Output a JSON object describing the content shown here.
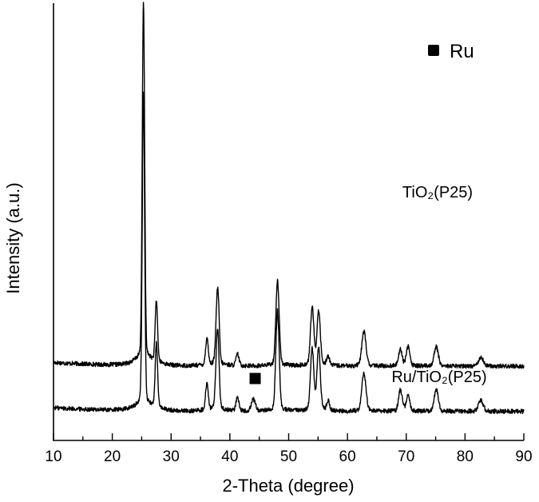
{
  "chart_data": {
    "type": "line",
    "xlabel": "2-Theta (degree)",
    "ylabel": "Intensity (a.u.)",
    "xlim": [
      10,
      90
    ],
    "x_ticks": [
      10,
      20,
      30,
      40,
      50,
      60,
      70,
      80,
      90
    ],
    "y_ticks_labeled": false,
    "grid": false,
    "legend": {
      "placement": "top-right",
      "entries": [
        {
          "marker": "filled-square",
          "label": "Ru",
          "color": "#000000"
        }
      ]
    },
    "series": [
      {
        "name": "TiO₂(P25)",
        "color": "#000000",
        "baseline": 0.52,
        "peaks": [
          {
            "x": 25.3,
            "h": 4.7,
            "w": 0.2
          },
          {
            "x": 27.5,
            "h": 0.8,
            "w": 0.2
          },
          {
            "x": 36.1,
            "h": 0.35,
            "w": 0.22
          },
          {
            "x": 37.8,
            "h": 0.5,
            "w": 0.25
          },
          {
            "x": 38.0,
            "h": 0.6,
            "w": 0.22
          },
          {
            "x": 41.3,
            "h": 0.15,
            "w": 0.25
          },
          {
            "x": 48.1,
            "h": 1.1,
            "w": 0.28
          },
          {
            "x": 54.0,
            "h": 0.75,
            "w": 0.28
          },
          {
            "x": 55.1,
            "h": 0.7,
            "w": 0.28
          },
          {
            "x": 56.7,
            "h": 0.12,
            "w": 0.25
          },
          {
            "x": 62.8,
            "h": 0.45,
            "w": 0.35
          },
          {
            "x": 69.0,
            "h": 0.22,
            "w": 0.3
          },
          {
            "x": 70.3,
            "h": 0.25,
            "w": 0.3
          },
          {
            "x": 75.1,
            "h": 0.25,
            "w": 0.35
          },
          {
            "x": 82.7,
            "h": 0.12,
            "w": 0.4
          }
        ]
      },
      {
        "name": "Ru/TiO₂(P25)",
        "color": "#000000",
        "baseline": -0.1,
        "peaks": [
          {
            "x": 25.3,
            "h": 4.1,
            "w": 0.2
          },
          {
            "x": 27.5,
            "h": 0.85,
            "w": 0.2
          },
          {
            "x": 36.1,
            "h": 0.35,
            "w": 0.22
          },
          {
            "x": 37.8,
            "h": 0.6,
            "w": 0.25
          },
          {
            "x": 38.0,
            "h": 0.55,
            "w": 0.22
          },
          {
            "x": 41.3,
            "h": 0.18,
            "w": 0.25
          },
          {
            "x": 44.0,
            "h": 0.15,
            "w": 0.35
          },
          {
            "x": 48.1,
            "h": 1.3,
            "w": 0.28
          },
          {
            "x": 54.0,
            "h": 0.8,
            "w": 0.28
          },
          {
            "x": 55.1,
            "h": 0.8,
            "w": 0.28
          },
          {
            "x": 56.7,
            "h": 0.12,
            "w": 0.25
          },
          {
            "x": 62.8,
            "h": 0.5,
            "w": 0.35
          },
          {
            "x": 69.0,
            "h": 0.28,
            "w": 0.3
          },
          {
            "x": 70.3,
            "h": 0.2,
            "w": 0.3
          },
          {
            "x": 75.1,
            "h": 0.28,
            "w": 0.35
          },
          {
            "x": 82.7,
            "h": 0.14,
            "w": 0.4
          }
        ]
      }
    ],
    "annotations": [
      {
        "type": "filled-square",
        "x": 44.3,
        "y": 0.35,
        "meaning": "Ru"
      }
    ]
  }
}
